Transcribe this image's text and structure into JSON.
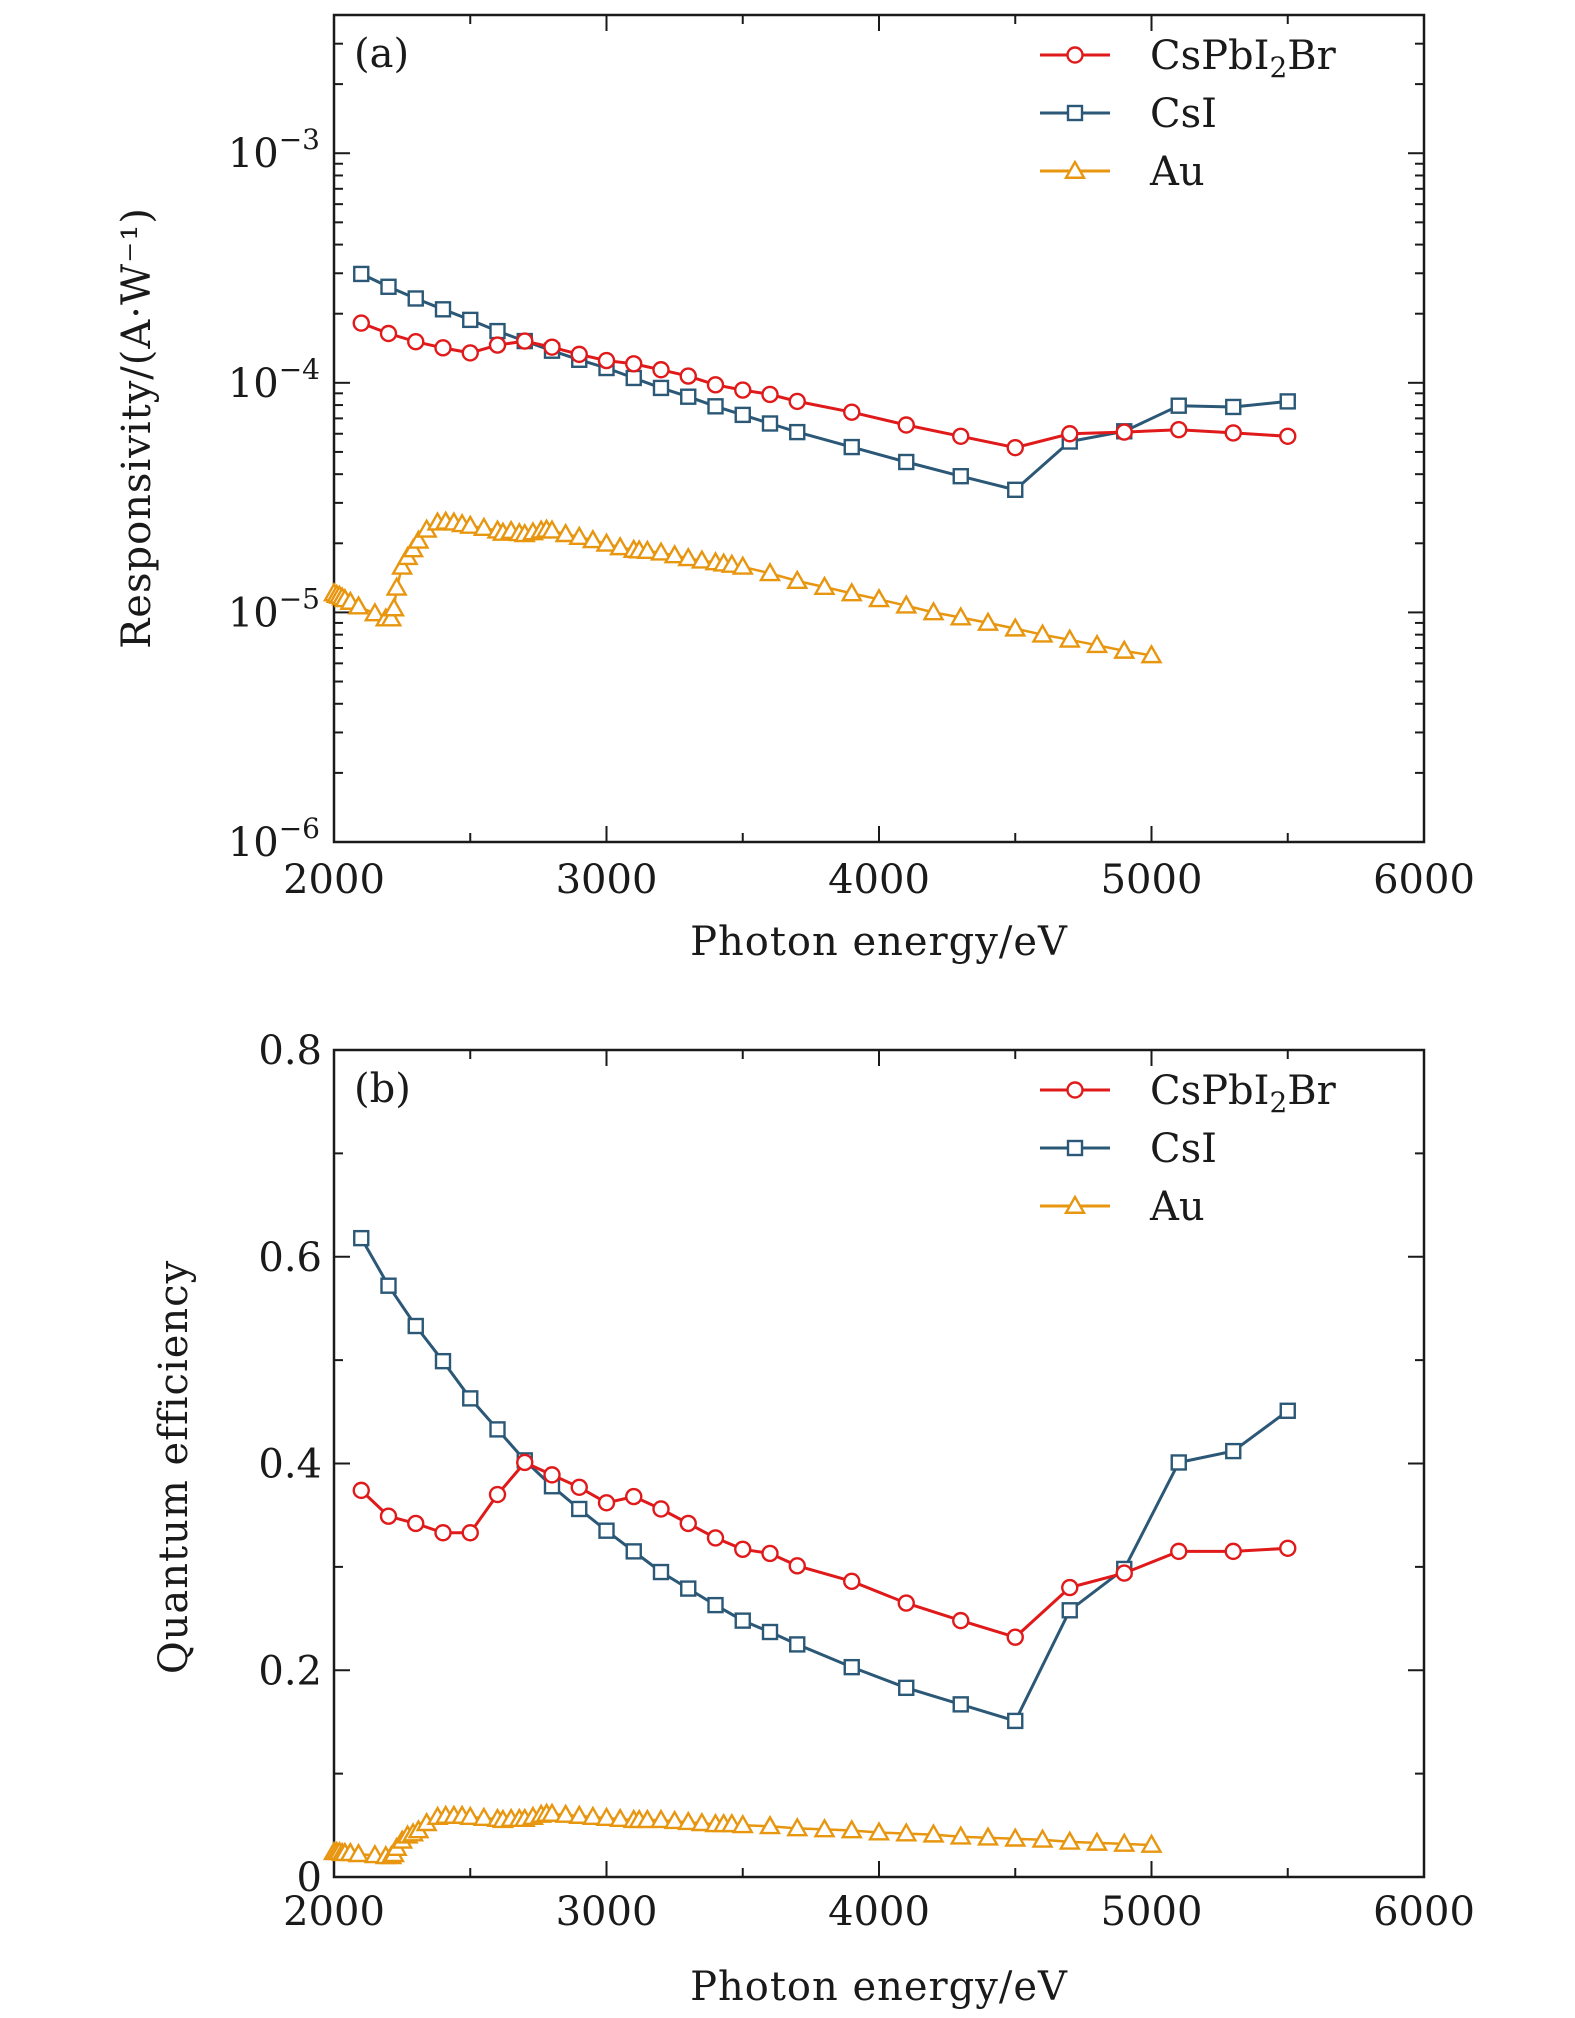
{
  "colors": {
    "csppbi2br": "#e01a1a",
    "csi": "#2b5876",
    "au": "#e8960f",
    "axis": "#1a1a1a"
  },
  "chart_data": [
    {
      "type": "line",
      "panel_label": "(a)",
      "xlabel": "Photon energy/eV",
      "ylabel": "Responsivity/(A·W⁻¹)",
      "xlim": [
        2000,
        6000
      ],
      "ylim": [
        1e-06,
        0.004
      ],
      "yscale": "log",
      "grid": false,
      "legend_position": "top-right",
      "x_ticks": [
        {
          "value": 2000,
          "label": "2000"
        },
        {
          "value": 3000,
          "label": "3000"
        },
        {
          "value": 4000,
          "label": "4000"
        },
        {
          "value": 5000,
          "label": "5000"
        },
        {
          "value": 6000,
          "label": "6000"
        }
      ],
      "y_ticks": [
        {
          "value": 1e-06,
          "base": "10",
          "exp": "−6"
        },
        {
          "value": 1e-05,
          "base": "10",
          "exp": "−5"
        },
        {
          "value": 0.0001,
          "base": "10",
          "exp": "−4"
        },
        {
          "value": 0.001,
          "base": "10",
          "exp": "−3"
        }
      ],
      "series": [
        {
          "name": "CsPbI2Br",
          "label_parts": [
            "CsPbI",
            "2",
            "Br"
          ],
          "color": "#e01a1a",
          "marker": "circle",
          "x": [
            2100,
            2200,
            2300,
            2400,
            2500,
            2600,
            2700,
            2800,
            2900,
            3000,
            3100,
            3200,
            3300,
            3400,
            3500,
            3600,
            3700,
            3900,
            4100,
            4300,
            4500,
            4700,
            4900,
            5100,
            5300,
            5500
          ],
          "y": [
            0.000182,
            0.000164,
            0.000151,
            0.000142,
            0.000135,
            0.000146,
            0.000152,
            0.000143,
            0.000133,
            0.000125,
            0.000121,
            0.000114,
            0.000107,
            9.8e-05,
            9.3e-05,
            8.9e-05,
            8.3e-05,
            7.45e-05,
            6.55e-05,
            5.85e-05,
            5.22e-05,
            6e-05,
            6.1e-05,
            6.25e-05,
            6.05e-05,
            5.85e-05
          ]
        },
        {
          "name": "CsI",
          "color": "#2b5876",
          "marker": "square",
          "x": [
            2100,
            2200,
            2300,
            2400,
            2500,
            2600,
            2700,
            2800,
            2900,
            3000,
            3100,
            3200,
            3300,
            3400,
            3500,
            3600,
            3700,
            3900,
            4100,
            4300,
            4500,
            4700,
            4900,
            5100,
            5300,
            5500
          ],
          "y": [
            0.000298,
            0.000262,
            0.000233,
            0.000209,
            0.000188,
            0.000168,
            0.000152,
            0.000138,
            0.000126,
            0.000116,
            0.000105,
            9.5e-05,
            8.7e-05,
            7.9e-05,
            7.25e-05,
            6.65e-05,
            6.1e-05,
            5.25e-05,
            4.52e-05,
            3.92e-05,
            3.42e-05,
            5.55e-05,
            6.15e-05,
            7.95e-05,
            7.85e-05,
            8.3e-05
          ]
        },
        {
          "name": "Au",
          "color": "#e8960f",
          "marker": "triangle",
          "x": [
            2000,
            2010,
            2020,
            2030,
            2040,
            2060,
            2090,
            2150,
            2190,
            2210,
            2220,
            2230,
            2250,
            2270,
            2290,
            2310,
            2340,
            2380,
            2410,
            2440,
            2470,
            2500,
            2550,
            2600,
            2620,
            2650,
            2680,
            2700,
            2730,
            2760,
            2780,
            2800,
            2850,
            2900,
            2950,
            3000,
            3050,
            3100,
            3120,
            3150,
            3200,
            3250,
            3300,
            3350,
            3400,
            3430,
            3460,
            3500,
            3600,
            3700,
            3800,
            3900,
            4000,
            4100,
            4200,
            4300,
            4400,
            4500,
            4600,
            4700,
            4800,
            4900,
            5000
          ],
          "y": [
            1.21e-05,
            1.19e-05,
            1.18e-05,
            1.16e-05,
            1.14e-05,
            1.11e-05,
            1.06e-05,
            9.9e-06,
            9.4e-06,
            9.4e-06,
            1.04e-05,
            1.28e-05,
            1.58e-05,
            1.74e-05,
            1.88e-05,
            2.05e-05,
            2.29e-05,
            2.46e-05,
            2.48e-05,
            2.46e-05,
            2.42e-05,
            2.38e-05,
            2.33e-05,
            2.27e-05,
            2.22e-05,
            2.26e-05,
            2.21e-05,
            2.19e-05,
            2.23e-05,
            2.27e-05,
            2.29e-05,
            2.27e-05,
            2.19e-05,
            2.13e-05,
            2.06e-05,
            1.99e-05,
            1.92e-05,
            1.87e-05,
            1.86e-05,
            1.85e-05,
            1.82e-05,
            1.77e-05,
            1.72e-05,
            1.68e-05,
            1.65e-05,
            1.63e-05,
            1.61e-05,
            1.58e-05,
            1.48e-05,
            1.37e-05,
            1.29e-05,
            1.21e-05,
            1.14e-05,
            1.07e-05,
            1e-05,
            9.5e-06,
            9e-06,
            8.5e-06,
            8e-06,
            7.6e-06,
            7.2e-06,
            6.8e-06,
            6.5e-06
          ]
        }
      ]
    },
    {
      "type": "line",
      "panel_label": "(b)",
      "xlabel": "Photon energy/eV",
      "ylabel": "Quantum efficiency",
      "xlim": [
        2000,
        6000
      ],
      "ylim": [
        0,
        0.8
      ],
      "yscale": "linear",
      "grid": false,
      "legend_position": "top-right",
      "x_ticks": [
        {
          "value": 2000,
          "label": "2000"
        },
        {
          "value": 3000,
          "label": "3000"
        },
        {
          "value": 4000,
          "label": "4000"
        },
        {
          "value": 5000,
          "label": "5000"
        },
        {
          "value": 6000,
          "label": "6000"
        }
      ],
      "y_ticks": [
        {
          "value": 0,
          "label": "0"
        },
        {
          "value": 0.2,
          "label": "0.2"
        },
        {
          "value": 0.4,
          "label": "0.4"
        },
        {
          "value": 0.6,
          "label": "0.6"
        },
        {
          "value": 0.8,
          "label": "0.8"
        }
      ],
      "series": [
        {
          "name": "CsPbI2Br",
          "label_parts": [
            "CsPbI",
            "2",
            "Br"
          ],
          "color": "#e01a1a",
          "marker": "circle",
          "x": [
            2100,
            2200,
            2300,
            2400,
            2500,
            2600,
            2700,
            2800,
            2900,
            3000,
            3100,
            3200,
            3300,
            3400,
            3500,
            3600,
            3700,
            3900,
            4100,
            4300,
            4500,
            4700,
            4900,
            5100,
            5300,
            5500
          ],
          "y": [
            0.374,
            0.349,
            0.342,
            0.333,
            0.333,
            0.37,
            0.401,
            0.389,
            0.377,
            0.362,
            0.368,
            0.356,
            0.342,
            0.328,
            0.317,
            0.313,
            0.301,
            0.286,
            0.265,
            0.248,
            0.232,
            0.28,
            0.294,
            0.315,
            0.315,
            0.318
          ]
        },
        {
          "name": "CsI",
          "color": "#2b5876",
          "marker": "square",
          "x": [
            2100,
            2200,
            2300,
            2400,
            2500,
            2600,
            2700,
            2800,
            2900,
            3000,
            3100,
            3200,
            3300,
            3400,
            3500,
            3600,
            3700,
            3900,
            4100,
            4300,
            4500,
            4700,
            4900,
            5100,
            5300,
            5500
          ],
          "y": [
            0.618,
            0.572,
            0.533,
            0.499,
            0.463,
            0.433,
            0.403,
            0.378,
            0.356,
            0.335,
            0.315,
            0.295,
            0.279,
            0.263,
            0.248,
            0.237,
            0.225,
            0.203,
            0.183,
            0.167,
            0.151,
            0.258,
            0.298,
            0.401,
            0.412,
            0.451
          ]
        },
        {
          "name": "Au",
          "color": "#e8960f",
          "marker": "triangle",
          "x": [
            2000,
            2010,
            2020,
            2030,
            2040,
            2060,
            2090,
            2150,
            2190,
            2210,
            2220,
            2230,
            2250,
            2270,
            2290,
            2310,
            2340,
            2380,
            2410,
            2440,
            2470,
            2500,
            2550,
            2600,
            2620,
            2650,
            2680,
            2700,
            2730,
            2760,
            2780,
            2800,
            2850,
            2900,
            2950,
            3000,
            3050,
            3100,
            3120,
            3150,
            3200,
            3250,
            3300,
            3350,
            3400,
            3430,
            3460,
            3500,
            3600,
            3700,
            3800,
            3900,
            4000,
            4100,
            4200,
            4300,
            4400,
            4500,
            4600,
            4700,
            4800,
            4900,
            5000
          ],
          "y": [
            0.024,
            0.024,
            0.024,
            0.023,
            0.023,
            0.023,
            0.022,
            0.021,
            0.02,
            0.02,
            0.022,
            0.028,
            0.035,
            0.04,
            0.042,
            0.045,
            0.052,
            0.058,
            0.059,
            0.059,
            0.059,
            0.058,
            0.057,
            0.056,
            0.055,
            0.056,
            0.056,
            0.056,
            0.058,
            0.06,
            0.061,
            0.061,
            0.06,
            0.059,
            0.058,
            0.057,
            0.056,
            0.055,
            0.055,
            0.055,
            0.055,
            0.054,
            0.053,
            0.052,
            0.051,
            0.051,
            0.051,
            0.05,
            0.049,
            0.047,
            0.046,
            0.045,
            0.043,
            0.042,
            0.041,
            0.039,
            0.038,
            0.037,
            0.036,
            0.034,
            0.033,
            0.032,
            0.031
          ]
        }
      ]
    }
  ]
}
